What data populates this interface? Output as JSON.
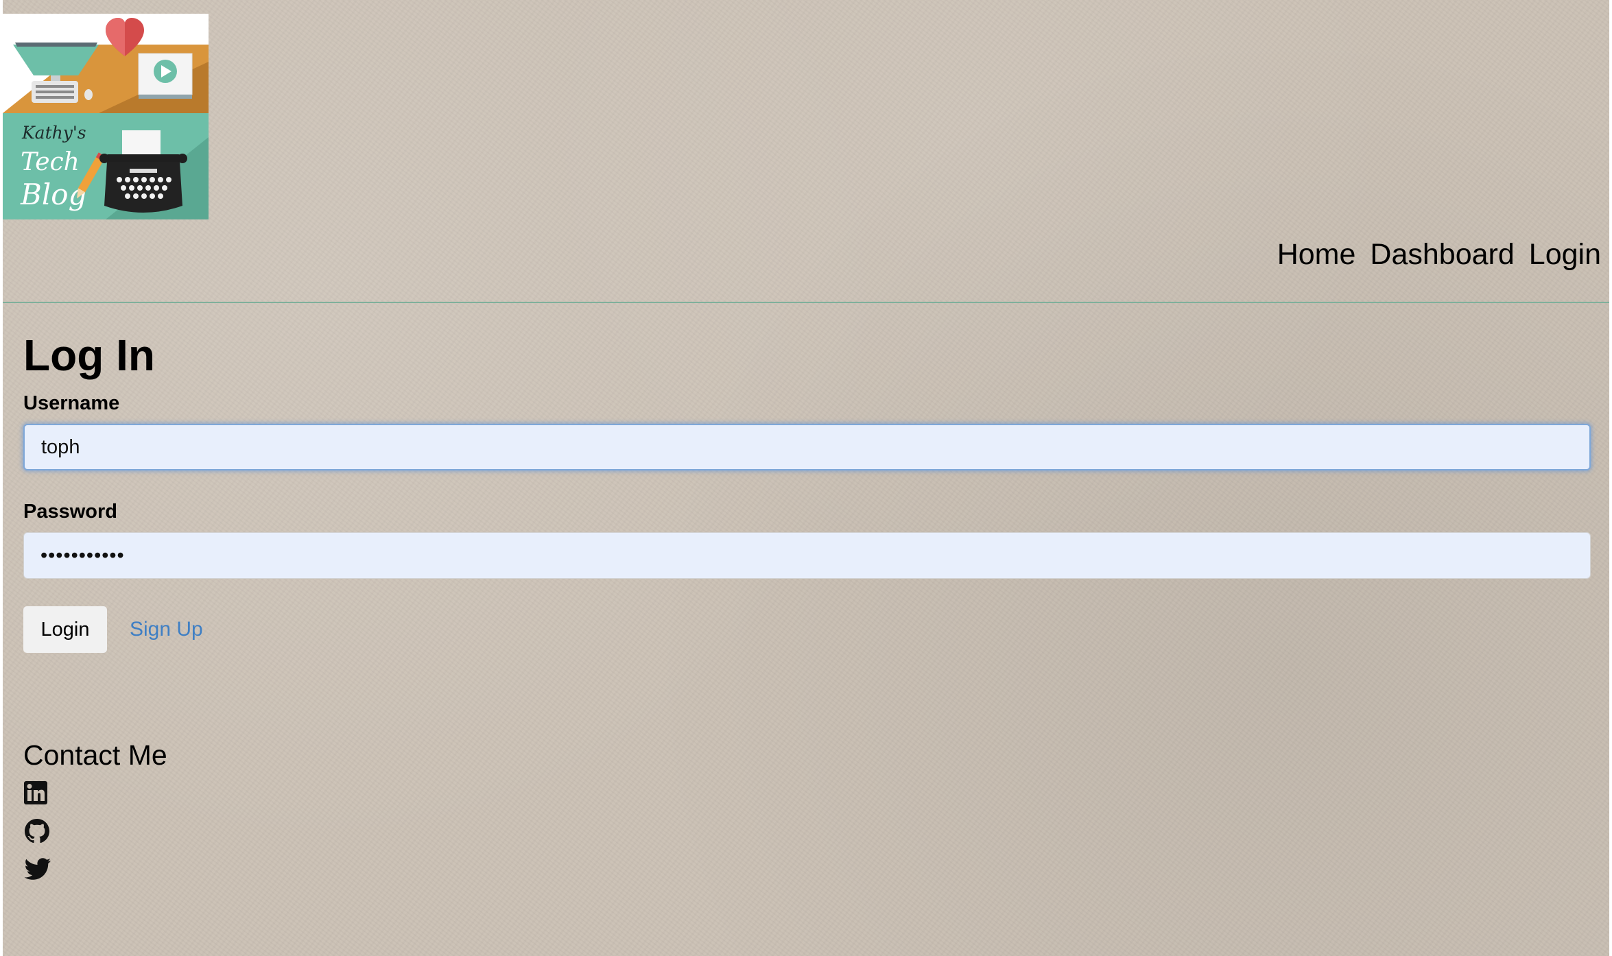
{
  "header": {
    "logo": {
      "text_line1": "Kathy's",
      "text_line2": "Tech",
      "text_line3": "Blog",
      "icons": [
        "heart-icon",
        "play-icon",
        "monitor-icon",
        "keyboard-icon",
        "pencil-icon",
        "typewriter-icon"
      ]
    },
    "nav": {
      "home": "Home",
      "dashboard": "Dashboard",
      "login": "Login"
    }
  },
  "login_form": {
    "title": "Log In",
    "username_label": "Username",
    "username_value": "toph",
    "password_label": "Password",
    "password_value": "•••••••••••",
    "login_button": "Login",
    "signup_link": "Sign Up"
  },
  "footer": {
    "contact_title": "Contact Me",
    "social_icons": [
      "linkedin-icon",
      "github-icon",
      "twitter-icon"
    ]
  },
  "colors": {
    "page_background": "#cbc1b5",
    "header_rule": "#7fb09b",
    "input_background": "#e8effc",
    "focus_border": "#7ea7d8",
    "link": "#3f7fc4",
    "logo_teal": "#6dbfa8",
    "logo_orange": "#d9953c",
    "heart_red": "#d44b4b"
  }
}
